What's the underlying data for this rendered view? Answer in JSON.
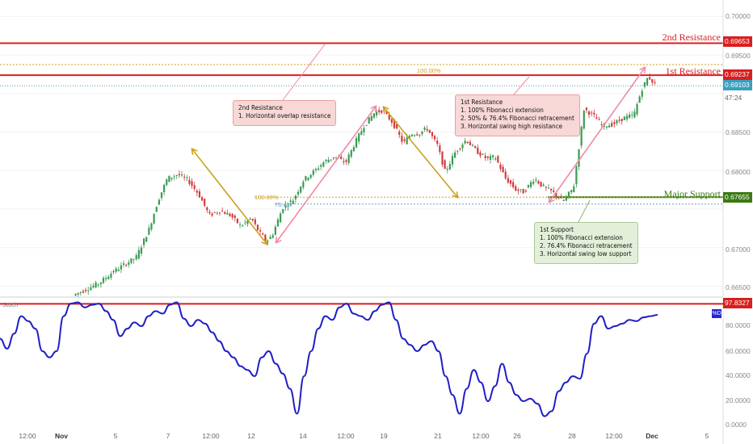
{
  "chart_data": [
    {
      "type": "candlestick",
      "title": "",
      "ylim": [
        0.664,
        0.7015
      ],
      "y_ticks": [
        "0.70000",
        "0.69500",
        "0.69000",
        "0.68500",
        "0.68000",
        "0.67500",
        "0.67000",
        "0.66500"
      ],
      "x_ticks": [
        "12:00",
        "Nov",
        "5",
        "7",
        "12:00",
        "12",
        "14",
        "12:00",
        "19",
        "21",
        "12:00",
        "26",
        "28",
        "12:00",
        "Dec",
        "5"
      ],
      "price_path": [
        [
          0,
          0.6638
        ],
        [
          20,
          0.6654
        ],
        [
          30,
          0.6668
        ],
        [
          42,
          0.6681
        ],
        [
          48,
          0.6687
        ],
        [
          58,
          0.6724
        ],
        [
          65,
          0.6762
        ],
        [
          72,
          0.679
        ],
        [
          80,
          0.6795
        ],
        [
          88,
          0.6787
        ],
        [
          96,
          0.6769
        ],
        [
          104,
          0.6742
        ],
        [
          112,
          0.6748
        ],
        [
          120,
          0.6742
        ],
        [
          128,
          0.6728
        ],
        [
          136,
          0.6738
        ],
        [
          142,
          0.672
        ],
        [
          148,
          0.6708
        ],
        [
          152,
          0.6716
        ],
        [
          160,
          0.6752
        ],
        [
          168,
          0.6762
        ],
        [
          176,
          0.6788
        ],
        [
          184,
          0.6799
        ],
        [
          192,
          0.6812
        ],
        [
          200,
          0.6818
        ],
        [
          208,
          0.681
        ],
        [
          214,
          0.6832
        ],
        [
          222,
          0.6858
        ],
        [
          230,
          0.6875
        ],
        [
          236,
          0.6878
        ],
        [
          244,
          0.6862
        ],
        [
          252,
          0.6835
        ],
        [
          258,
          0.6848
        ],
        [
          264,
          0.6848
        ],
        [
          270,
          0.6855
        ],
        [
          278,
          0.6833
        ],
        [
          284,
          0.6798
        ],
        [
          292,
          0.6825
        ],
        [
          300,
          0.684
        ],
        [
          308,
          0.6825
        ],
        [
          316,
          0.6815
        ],
        [
          322,
          0.6818
        ],
        [
          330,
          0.679
        ],
        [
          338,
          0.6775
        ],
        [
          344,
          0.6772
        ],
        [
          352,
          0.679
        ],
        [
          358,
          0.678
        ],
        [
          366,
          0.6772
        ],
        [
          374,
          0.676
        ],
        [
          382,
          0.6778
        ],
        [
          390,
          0.688
        ],
        [
          398,
          0.687
        ],
        [
          404,
          0.6858
        ],
        [
          412,
          0.686
        ],
        [
          420,
          0.6868
        ],
        [
          428,
          0.6872
        ],
        [
          434,
          0.6905
        ],
        [
          439,
          0.6922
        ],
        [
          444,
          0.6912
        ]
      ],
      "price_path_x_range": [
        0,
        444
      ],
      "levels": [
        {
          "name": "2nd Resistance",
          "value": 0.69653,
          "color": "#d91e1e"
        },
        {
          "name": "1st Resistance",
          "value": 0.69237,
          "color": "#d91e1e"
        },
        {
          "name": "Major Support",
          "value": 0.67655,
          "color": "#3a7a14"
        }
      ],
      "fib_levels": [
        {
          "label": "100.00%",
          "value": 0.69375,
          "color": "#d4a017"
        },
        {
          "label": "100.00%",
          "value": 0.67655,
          "color": "#d4a017"
        },
        {
          "label": "76.4%",
          "value": 0.67565,
          "color": "#6a9ec8"
        }
      ],
      "current_price": {
        "value": "0.69103",
        "countdown": "47:24"
      }
    },
    {
      "type": "line",
      "name": "Stoch",
      "legend_label": "%D",
      "ylim": [
        0,
        100
      ],
      "y_ticks": [
        "80.0000",
        "60.0000",
        "40.0000",
        "20.0000",
        "0.0000"
      ],
      "overbought_value": "97.8327",
      "series": [
        {
          "name": "%D",
          "values": [
            70,
            62,
            74,
            88,
            84,
            78,
            60,
            55,
            60,
            88,
            98,
            99,
            95,
            97,
            98,
            92,
            85,
            72,
            78,
            83,
            80,
            88,
            92,
            90,
            97,
            99,
            86,
            80,
            85,
            82,
            75,
            68,
            60,
            55,
            48,
            45,
            40,
            55,
            60,
            50,
            42,
            30,
            10,
            40,
            60,
            78,
            88,
            85,
            95,
            98,
            90,
            88,
            85,
            92,
            97,
            99,
            85,
            70,
            65,
            60,
            65,
            68,
            60,
            40,
            25,
            10,
            30,
            45,
            35,
            20,
            32,
            50,
            35,
            25,
            20,
            22,
            18,
            8,
            12,
            28,
            35,
            40,
            38,
            58,
            82,
            88,
            78,
            80,
            82,
            85,
            84,
            87,
            88,
            89
          ]
        }
      ]
    }
  ],
  "annotations": [
    {
      "title": "2nd Resistance",
      "lines": [
        "1. Horizontal overlap resistance"
      ]
    },
    {
      "title": "1st Resistance",
      "lines": [
        "1. 100% Fibonacci extension",
        "2. 50% & 76.4% Fibonacci retracement",
        "3. Horizontal swing high resistance"
      ]
    },
    {
      "title": "1st Support",
      "lines": [
        "1. 100% Fibonacci extension",
        "2. 76.4% Fibonacci retracement",
        "3. Horizontal swing low support"
      ]
    }
  ],
  "colors": {
    "resistance": "#d91e1e",
    "support": "#3a7a14",
    "up_candle": "#3a9a52",
    "down_candle": "#d23b3b",
    "stoch_line": "#1f1fc6",
    "arrow_gold": "#c9a21a",
    "arrow_pink": "#f08aa3",
    "current_price_tag": "#39a0bf"
  }
}
